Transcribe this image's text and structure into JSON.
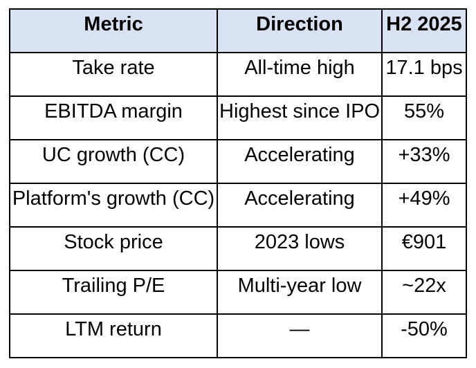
{
  "chart_data": {
    "type": "table",
    "title": "",
    "columns": [
      "Metric",
      "Direction",
      "H2 2025"
    ],
    "rows": [
      [
        "Take rate",
        "All-time high",
        "17.1 bps"
      ],
      [
        "EBITDA margin",
        "Highest since IPO",
        "55%"
      ],
      [
        "UC growth (CC)",
        "Accelerating",
        "+33%"
      ],
      [
        "Platform's growth (CC)",
        "Accelerating",
        "+49%"
      ],
      [
        "Stock price",
        "2023 lows",
        "€901"
      ],
      [
        "Trailing P/E",
        "Multi-year low",
        "~22x"
      ],
      [
        "LTM return",
        "—",
        "-50%"
      ]
    ],
    "header_bg": "#d9e2f3",
    "body_bg": "#ffffff",
    "border_color": "#000000",
    "text_color": "#000000"
  }
}
